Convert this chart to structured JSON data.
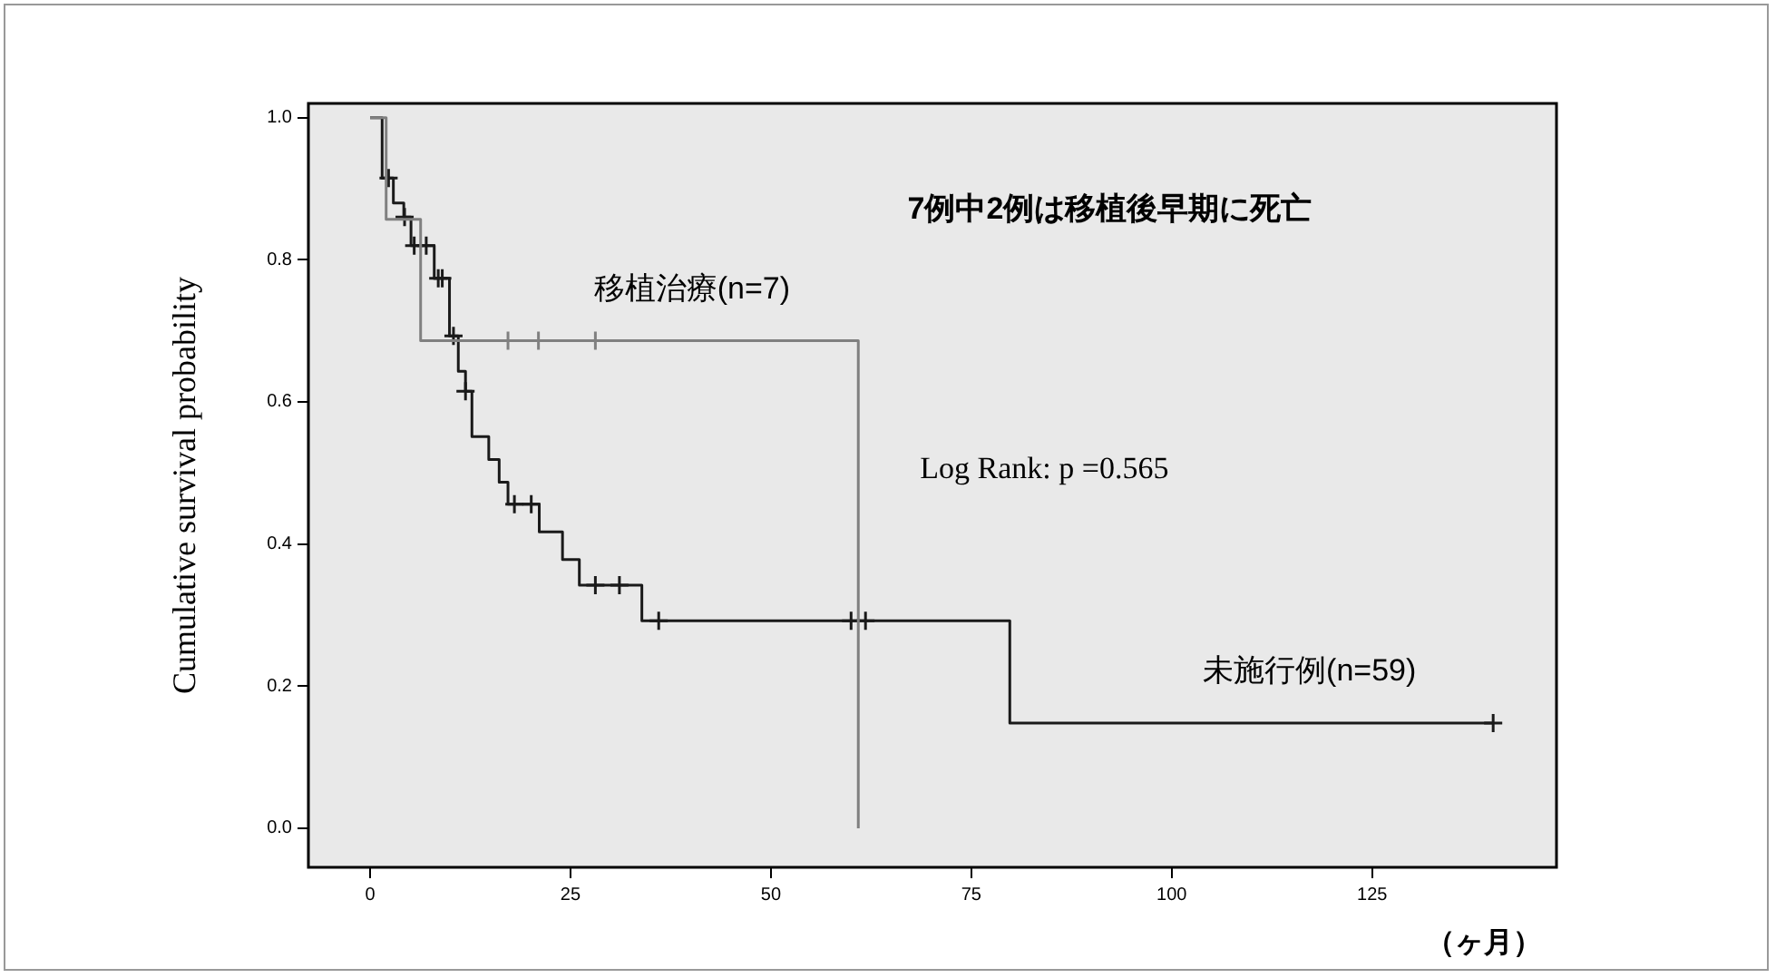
{
  "chart_data": {
    "type": "step",
    "ylabel": "Cumulative survival probability",
    "xlabel": "（ヶ月）",
    "annotations": [
      "7例中2例は移植後早期に死亡",
      "Log Rank: p =0.565"
    ],
    "xlim": [
      -7.7,
      148
    ],
    "xticks": [
      0,
      25,
      50,
      75,
      100,
      125
    ],
    "ylim": [
      -0.055,
      1.02
    ],
    "yticks": [
      {
        "value": 0,
        "label": "0.0"
      },
      {
        "value": 0.2,
        "label": "0.2"
      },
      {
        "value": 0.4,
        "label": "0.4"
      },
      {
        "value": 0.6,
        "label": "0.6"
      },
      {
        "value": 0.8,
        "label": "0.8"
      },
      {
        "value": 1,
        "label": "1.0"
      }
    ],
    "legend": false,
    "series": [
      {
        "name": "移植治療(n=7)",
        "color": "#808080",
        "x": [
          0,
          2.0,
          6.3,
          60.9
        ],
        "values": [
          1,
          0.857,
          0.686,
          0
        ]
      },
      {
        "name": "未施行例(n=59)",
        "color": "#1a1a1a",
        "x": [
          0,
          1.5,
          2.9,
          4.2,
          5.1,
          8.0,
          9.9,
          11.0,
          11.9,
          12.7,
          14.8,
          16.1,
          17.2,
          21.1,
          24.0,
          26.1,
          33.9,
          79.8,
          140.1
        ],
        "values": [
          1,
          0.915,
          0.88,
          0.86,
          0.82,
          0.774,
          0.693,
          0.643,
          0.615,
          0.551,
          0.519,
          0.487,
          0.456,
          0.417,
          0.378,
          0.342,
          0.292,
          0.148,
          0.148
        ]
      },
      {
        "type": "scatter",
        "marker": "cross",
        "color": "#808080",
        "x": [
          17.2,
          21.0,
          28.1
        ],
        "values": [
          0.686,
          0.686,
          0.686
        ]
      },
      {
        "type": "scatter",
        "marker": "cross",
        "color": "#1a1a1a",
        "x": [
          2.3,
          4.3,
          5.5,
          7.0,
          8.5,
          9.0,
          10.4,
          11.9,
          18.0,
          20.1,
          28.1,
          31.1,
          36.0,
          60.0,
          61.8,
          140.1
        ],
        "values": [
          0.915,
          0.86,
          0.82,
          0.82,
          0.774,
          0.774,
          0.693,
          0.615,
          0.456,
          0.456,
          0.342,
          0.342,
          0.292,
          0.292,
          0.292,
          0.148
        ]
      }
    ]
  }
}
